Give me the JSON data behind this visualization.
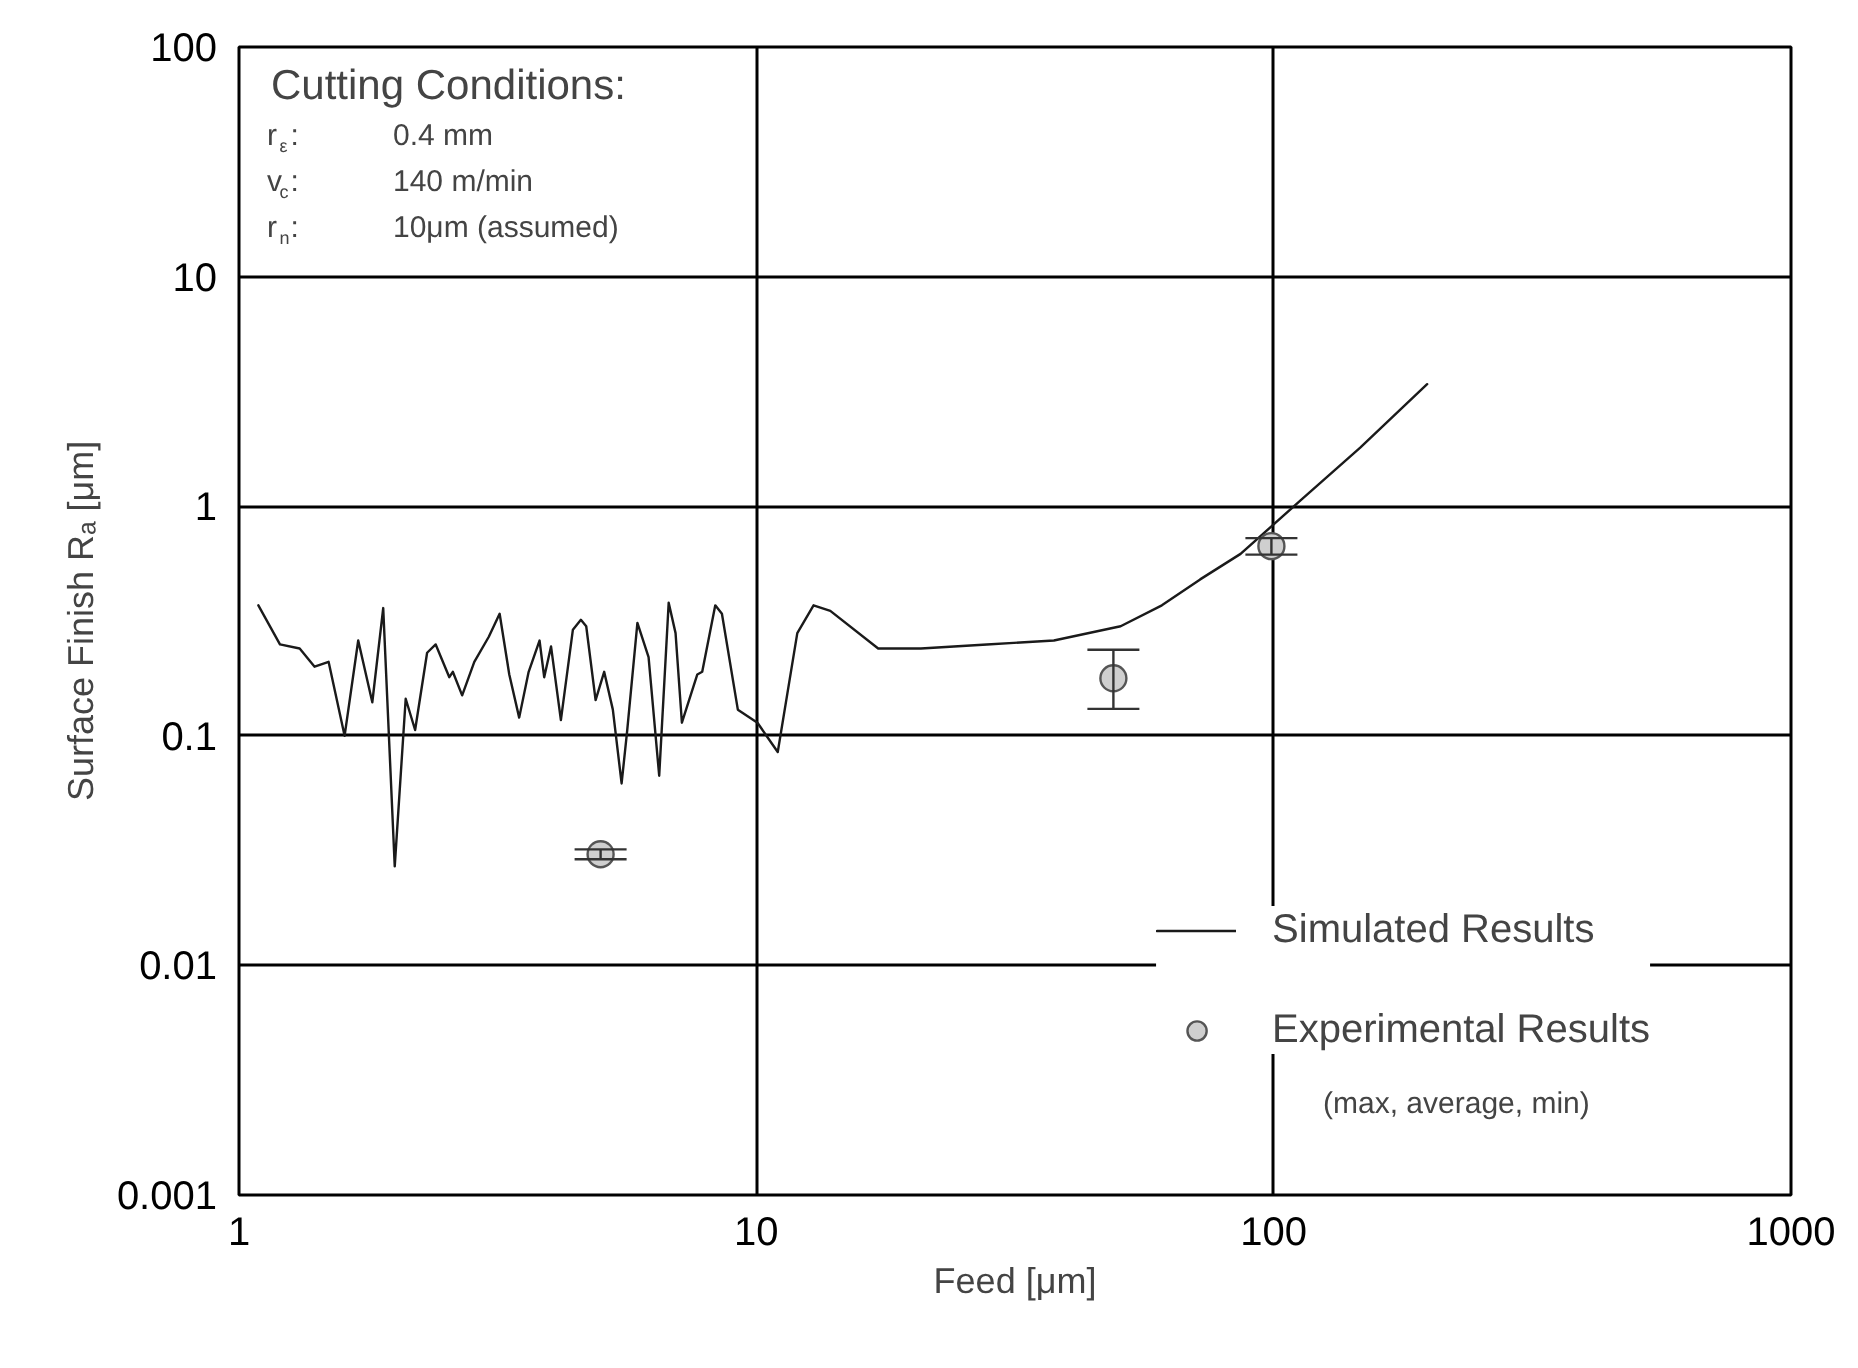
{
  "chart_data": {
    "type": "line",
    "xlabel": "Feed [μm]",
    "ylabel": "Surface Finish Rₐ [μm]",
    "log": "xy",
    "xlim": [
      1,
      1000
    ],
    "ylim": [
      0.001,
      100
    ],
    "xticks": [
      1,
      10,
      100,
      1000
    ],
    "yticks": [
      0.001,
      0.01,
      0.1,
      1,
      10,
      100
    ],
    "grid": true,
    "legend": "bottom right",
    "annotations": [
      "Cutting Conditions:",
      "r$_{ε}$: 0.4 mm",
      "v$_{c}$: 140 m/min",
      "r$_{n}$: 10μm (assumed)",
      "(max, average, min)"
    ],
    "series": [
      {
        "name": "Simulated Results",
        "color": "#1a1a1a",
        "marker": "none",
        "x": [
          1.09,
          1.2,
          1.31,
          1.4,
          1.49,
          1.6,
          1.7,
          1.81,
          1.9,
          2.0,
          2.1,
          2.19,
          2.31,
          2.4,
          2.55,
          2.59,
          2.7,
          2.85,
          3.04,
          3.19,
          3.33,
          3.48,
          3.63,
          3.81,
          3.89,
          4.01,
          4.19,
          4.42,
          4.58,
          4.69,
          4.89,
          5.08,
          5.28,
          5.49,
          5.63,
          5.89,
          6.19,
          6.49,
          6.77,
          6.98,
          7.18,
          7.69,
          7.86,
          8.33,
          8.58,
          9.21,
          10.05,
          11.0,
          12.0,
          12.9,
          13.9,
          17.2,
          20.8,
          27.9,
          37.6,
          50.6,
          60.8,
          72.1,
          86.3,
          112.7,
          147,
          198
        ],
        "values": [
          0.37,
          0.25,
          0.24,
          0.2,
          0.21,
          0.1,
          0.26,
          0.14,
          0.36,
          0.027,
          0.145,
          0.106,
          0.23,
          0.25,
          0.18,
          0.19,
          0.15,
          0.21,
          0.27,
          0.34,
          0.185,
          0.12,
          0.19,
          0.26,
          0.18,
          0.245,
          0.117,
          0.29,
          0.32,
          0.3,
          0.143,
          0.19,
          0.13,
          0.062,
          0.106,
          0.31,
          0.22,
          0.067,
          0.38,
          0.28,
          0.114,
          0.185,
          0.19,
          0.37,
          0.34,
          0.13,
          0.114,
          0.085,
          0.28,
          0.37,
          0.35,
          0.24,
          0.24,
          0.25,
          0.26,
          0.3,
          0.37,
          0.48,
          0.62,
          1.06,
          1.8,
          3.4
        ]
      },
      {
        "name": "Experimental Results",
        "type": "scatter",
        "color": "#cfcfcf",
        "marker": "circle",
        "x": [
          5,
          49,
          99
        ],
        "values": [
          0.0305,
          0.178,
          0.67
        ],
        "errors": [
          [
            0.029,
            0.032
          ],
          [
            0.131,
            0.237
          ],
          [
            0.615,
            0.726
          ]
        ]
      }
    ]
  }
}
